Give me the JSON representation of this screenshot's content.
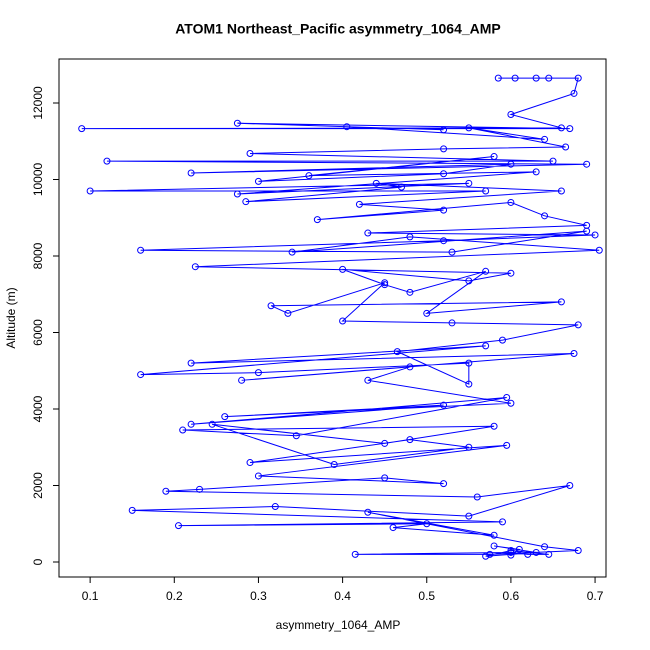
{
  "chart_data": {
    "type": "line",
    "title": "ATOM1 Northeast_Pacific asymmetry_1064_AMP",
    "x_label": "asymmetry_1064_AMP",
    "y_label": "Altitude (m)",
    "color": "#0000ff",
    "markers": true,
    "xlim": [
      0.063,
      0.713
    ],
    "ylim": [
      -392,
      13150
    ],
    "xticks": [
      0.1,
      0.2,
      0.3,
      0.4,
      0.5,
      0.6,
      0.7
    ],
    "yticks": [
      0,
      2000,
      4000,
      6000,
      8000,
      10000,
      12000
    ],
    "x": [
      0.585,
      0.605,
      0.63,
      0.645,
      0.68,
      0.675,
      0.6,
      0.66,
      0.09,
      0.67,
      0.275,
      0.52,
      0.405,
      0.64,
      0.55,
      0.665,
      0.52,
      0.29,
      0.65,
      0.12,
      0.69,
      0.22,
      0.6,
      0.52,
      0.3,
      0.58,
      0.36,
      0.63,
      0.275,
      0.55,
      0.1,
      0.57,
      0.285,
      0.47,
      0.44,
      0.66,
      0.42,
      0.52,
      0.37,
      0.6,
      0.64,
      0.69,
      0.43,
      0.7,
      0.52,
      0.16,
      0.53,
      0.69,
      0.34,
      0.48,
      0.705,
      0.225,
      0.6,
      0.55,
      0.4,
      0.45,
      0.48,
      0.57,
      0.5,
      0.66,
      0.315,
      0.335,
      0.45,
      0.4,
      0.53,
      0.68,
      0.59,
      0.465,
      0.55,
      0.55,
      0.3,
      0.16,
      0.57,
      0.22,
      0.675,
      0.28,
      0.48,
      0.43,
      0.6,
      0.26,
      0.52,
      0.22,
      0.595,
      0.345,
      0.21,
      0.58,
      0.45,
      0.245,
      0.39,
      0.55,
      0.48,
      0.29,
      0.595,
      0.3,
      0.52,
      0.45,
      0.23,
      0.19,
      0.56,
      0.67,
      0.55,
      0.32,
      0.15,
      0.59,
      0.205,
      0.5,
      0.46,
      0.58,
      0.43,
      0.64,
      0.68,
      0.575,
      0.415,
      0.6,
      0.62,
      0.645,
      0.6,
      0.57,
      0.63,
      0.58,
      0.61,
      0.6
    ],
    "values": [
      12650,
      12650,
      12650,
      12650,
      12650,
      12250,
      11700,
      11350,
      11330,
      11330,
      11470,
      11300,
      11380,
      11050,
      11350,
      10850,
      10800,
      10680,
      10480,
      10480,
      10400,
      10170,
      10400,
      10150,
      9950,
      10600,
      10100,
      10200,
      9620,
      9900,
      9700,
      9700,
      9420,
      9800,
      9900,
      9700,
      9350,
      9200,
      8950,
      9400,
      9050,
      8800,
      8600,
      8550,
      8400,
      8150,
      8100,
      8650,
      8100,
      8500,
      8150,
      7720,
      7550,
      7350,
      7650,
      7250,
      7050,
      7600,
      6500,
      6800,
      6700,
      6500,
      7300,
      6300,
      6250,
      6200,
      5800,
      5500,
      4650,
      5200,
      4950,
      4900,
      5650,
      5200,
      5450,
      4750,
      5100,
      4750,
      4150,
      3800,
      4100,
      3600,
      4300,
      3300,
      3450,
      3550,
      3100,
      3600,
      2550,
      3000,
      3200,
      2600,
      3050,
      2250,
      2050,
      2200,
      1900,
      1850,
      1700,
      2000,
      1200,
      1450,
      1350,
      1050,
      950,
      1000,
      900,
      700,
      1300,
      400,
      300,
      200,
      200,
      250,
      200,
      200,
      300,
      150,
      250,
      420,
      330,
      180
    ]
  }
}
